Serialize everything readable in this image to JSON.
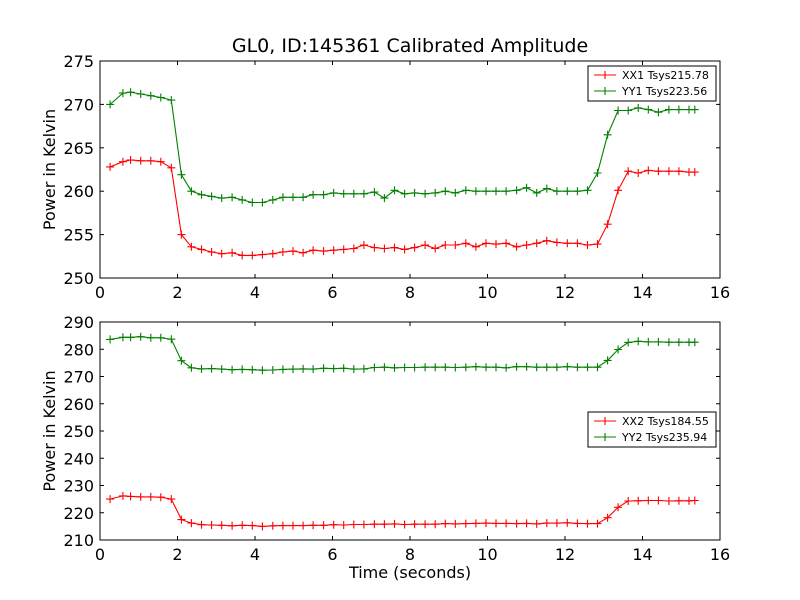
{
  "figure": {
    "title": "GL0, ID:145361 Calibrated Amplitude"
  },
  "chart_data": [
    {
      "type": "line",
      "title": "GL0, ID:145361 Calibrated Amplitude",
      "xlabel": "",
      "ylabel": "Power in Kelvin",
      "xlim": [
        0,
        16
      ],
      "ylim": [
        250,
        275
      ],
      "xticks": [
        0,
        2,
        4,
        6,
        8,
        10,
        12,
        14,
        16
      ],
      "yticks": [
        250,
        255,
        260,
        265,
        270,
        275
      ],
      "grid": false,
      "legend_position": "top-right",
      "x": [
        0.26,
        0.59,
        0.79,
        1.05,
        1.31,
        1.57,
        1.84,
        2.1,
        2.36,
        2.62,
        2.88,
        3.14,
        3.41,
        3.67,
        3.93,
        4.19,
        4.46,
        4.72,
        4.98,
        5.24,
        5.5,
        5.77,
        6.03,
        6.29,
        6.55,
        6.81,
        7.08,
        7.34,
        7.6,
        7.86,
        8.12,
        8.39,
        8.65,
        8.91,
        9.17,
        9.44,
        9.7,
        9.96,
        10.22,
        10.48,
        10.75,
        11.01,
        11.27,
        11.53,
        11.79,
        12.06,
        12.32,
        12.58,
        12.84,
        13.1,
        13.37,
        13.63,
        13.89,
        14.15,
        14.41,
        14.68,
        14.94,
        15.2,
        15.35
      ],
      "series": [
        {
          "name": "XX1 Tsys215.78",
          "color": "#ff0000",
          "values": [
            262.8,
            263.4,
            263.6,
            263.5,
            263.5,
            263.4,
            262.7,
            255.0,
            253.6,
            253.3,
            253.0,
            252.8,
            252.9,
            252.6,
            252.6,
            252.7,
            252.8,
            253.0,
            253.1,
            252.9,
            253.2,
            253.1,
            253.2,
            253.3,
            253.4,
            253.8,
            253.5,
            253.4,
            253.5,
            253.3,
            253.5,
            253.8,
            253.4,
            253.8,
            253.8,
            254.0,
            253.6,
            254.0,
            253.9,
            254.0,
            253.6,
            253.8,
            254.0,
            254.3,
            254.1,
            254.0,
            254.0,
            253.8,
            253.9,
            256.2,
            260.1,
            262.3,
            262.1,
            262.4,
            262.3,
            262.3,
            262.3,
            262.2,
            262.2
          ]
        },
        {
          "name": "YY1 Tsys223.56",
          "color": "#008000",
          "values": [
            270.0,
            271.3,
            271.4,
            271.2,
            271.0,
            270.8,
            270.5,
            261.9,
            260.0,
            259.6,
            259.4,
            259.2,
            259.3,
            259.0,
            258.7,
            258.7,
            259.0,
            259.3,
            259.3,
            259.3,
            259.6,
            259.6,
            259.8,
            259.7,
            259.7,
            259.7,
            259.9,
            259.2,
            260.1,
            259.7,
            259.8,
            259.7,
            259.8,
            260.0,
            259.8,
            260.1,
            260.0,
            260.0,
            260.0,
            260.0,
            260.1,
            260.4,
            259.8,
            260.3,
            260.0,
            260.0,
            260.0,
            260.1,
            262.1,
            266.5,
            269.3,
            269.3,
            269.6,
            269.4,
            269.1,
            269.4,
            269.4,
            269.4,
            269.4
          ]
        }
      ]
    },
    {
      "type": "line",
      "title": "",
      "xlabel": "Time (seconds)",
      "ylabel": "Power in Kelvin",
      "xlim": [
        0,
        16
      ],
      "ylim": [
        210,
        290
      ],
      "xticks": [
        0,
        2,
        4,
        6,
        8,
        10,
        12,
        14,
        16
      ],
      "yticks": [
        210,
        220,
        230,
        240,
        250,
        260,
        270,
        280,
        290
      ],
      "grid": false,
      "legend_position": "center-right",
      "x": [
        0.26,
        0.59,
        0.79,
        1.05,
        1.31,
        1.57,
        1.84,
        2.1,
        2.36,
        2.62,
        2.88,
        3.14,
        3.41,
        3.67,
        3.93,
        4.19,
        4.46,
        4.72,
        4.98,
        5.24,
        5.5,
        5.77,
        6.03,
        6.29,
        6.55,
        6.81,
        7.08,
        7.34,
        7.6,
        7.86,
        8.12,
        8.39,
        8.65,
        8.91,
        9.17,
        9.44,
        9.7,
        9.96,
        10.22,
        10.48,
        10.75,
        11.01,
        11.27,
        11.53,
        11.79,
        12.06,
        12.32,
        12.58,
        12.84,
        13.1,
        13.37,
        13.63,
        13.89,
        14.15,
        14.41,
        14.68,
        14.94,
        15.2,
        15.35
      ],
      "series": [
        {
          "name": "XX2 Tsys184.55",
          "color": "#ff0000",
          "values": [
            225.0,
            226.2,
            226.0,
            225.8,
            225.8,
            225.7,
            225.0,
            217.5,
            216.2,
            215.6,
            215.5,
            215.4,
            215.2,
            215.4,
            215.3,
            215.0,
            215.2,
            215.3,
            215.3,
            215.3,
            215.4,
            215.4,
            215.6,
            215.5,
            215.7,
            215.7,
            215.8,
            215.8,
            215.9,
            215.7,
            215.8,
            215.8,
            215.8,
            216.0,
            215.9,
            216.0,
            216.1,
            216.2,
            216.1,
            216.1,
            216.0,
            216.1,
            215.9,
            216.2,
            216.2,
            216.3,
            216.1,
            216.0,
            216.0,
            218.2,
            222.0,
            224.3,
            224.4,
            224.5,
            224.5,
            224.3,
            224.4,
            224.4,
            224.5
          ]
        },
        {
          "name": "YY2 Tsys235.94",
          "color": "#008000",
          "values": [
            283.6,
            284.4,
            284.4,
            284.6,
            284.2,
            284.2,
            283.7,
            275.8,
            273.2,
            272.8,
            272.9,
            272.7,
            272.5,
            272.6,
            272.5,
            272.3,
            272.4,
            272.6,
            272.7,
            272.8,
            272.7,
            273.0,
            272.9,
            273.0,
            272.7,
            272.8,
            273.3,
            273.4,
            273.2,
            273.3,
            273.3,
            273.4,
            273.4,
            273.4,
            273.3,
            273.4,
            273.6,
            273.4,
            273.4,
            273.2,
            273.6,
            273.6,
            273.4,
            273.4,
            273.4,
            273.6,
            273.4,
            273.4,
            273.4,
            275.9,
            279.9,
            282.5,
            282.9,
            282.7,
            282.7,
            282.6,
            282.6,
            282.6,
            282.6
          ]
        }
      ]
    }
  ]
}
